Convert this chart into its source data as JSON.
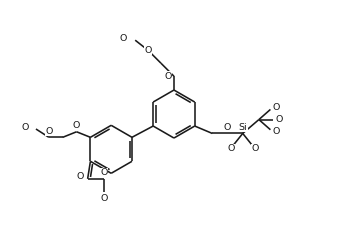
{
  "figsize": [
    3.47,
    2.46
  ],
  "dpi": 100,
  "bg": "#ffffff",
  "lc": "#1a1a1a",
  "lw": 1.15,
  "fs": 6.8,
  "xlim": [
    -2.6,
    4.2
  ],
  "ylim": [
    -2.5,
    2.8
  ]
}
